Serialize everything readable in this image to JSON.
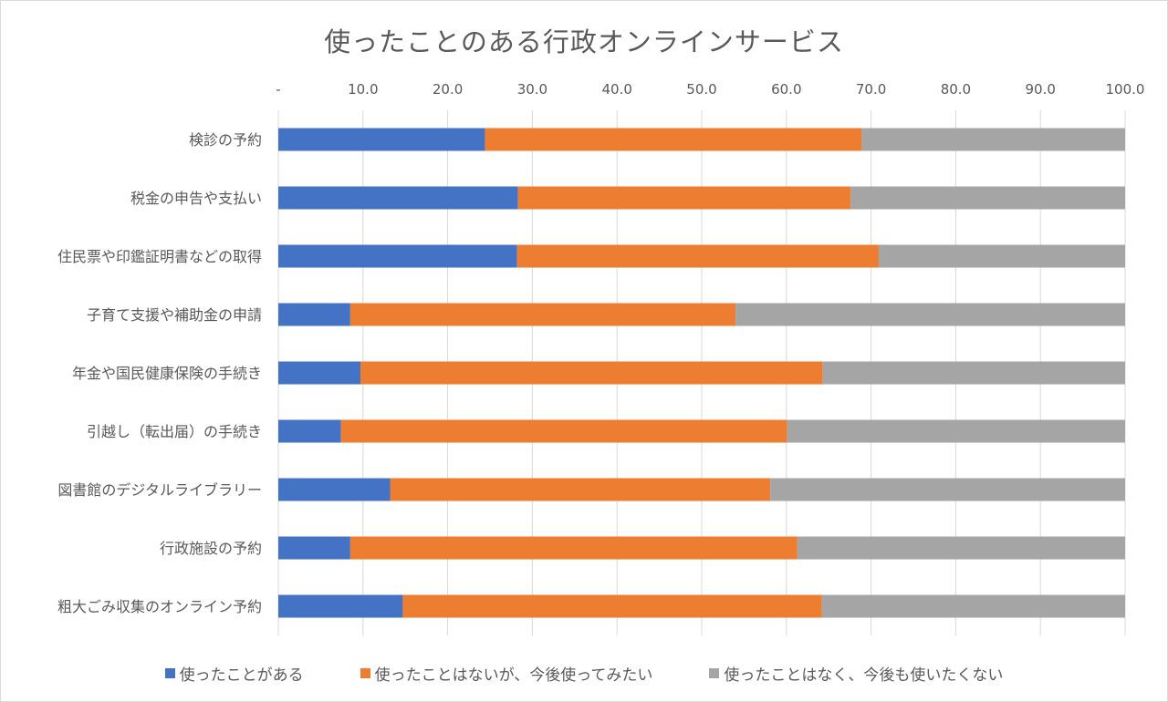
{
  "chart_data": {
    "type": "bar",
    "orientation": "horizontal",
    "stacked": true,
    "title": "使ったことのある行政オンラインサービス",
    "categories": [
      "検診の予約",
      "税金の申告や支払い",
      "住民票や印鑑証明書などの取得",
      "子育て支援や補助金の申請",
      "年金や国民健康保険の手続き",
      "引越し（転出届）の手続き",
      "図書館のデジタルライブラリー",
      "行政施設の予約",
      "粗大ごみ収集のオンライン予約"
    ],
    "series": [
      {
        "name": "使ったことがある",
        "color": "#4472C4",
        "values": [
          24.4,
          28.3,
          28.2,
          8.5,
          9.7,
          7.4,
          13.2,
          8.5,
          14.7
        ]
      },
      {
        "name": "使ったことはないが、今後使ってみたい",
        "color": "#ED7D31",
        "values": [
          44.5,
          39.3,
          42.7,
          45.5,
          54.6,
          52.7,
          44.9,
          52.8,
          49.5
        ]
      },
      {
        "name": "使ったことはなく、今後も使いたくない",
        "color": "#A5A5A5",
        "values": [
          31.1,
          32.4,
          29.1,
          46.0,
          35.7,
          39.9,
          41.9,
          38.7,
          35.8
        ]
      }
    ],
    "xlim": [
      0,
      100
    ],
    "x_ticks": [
      "-",
      "10.0",
      "20.0",
      "30.0",
      "40.0",
      "50.0",
      "60.0",
      "70.0",
      "80.0",
      "90.0",
      "100.0"
    ],
    "x_axis_position": "top",
    "grid": true,
    "legend_position": "bottom"
  }
}
